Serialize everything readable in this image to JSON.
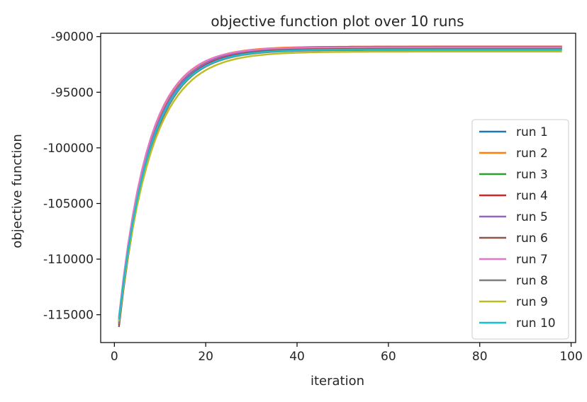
{
  "chart_data": {
    "type": "line",
    "title": "objective function plot over 10 runs",
    "xlabel": "iteration",
    "ylabel": "objective function",
    "xlim": [
      -3,
      101
    ],
    "ylim": [
      -117500,
      -89700
    ],
    "xticks": [
      0,
      20,
      40,
      60,
      80,
      100
    ],
    "yticks": [
      -90000,
      -95000,
      -100000,
      -105000,
      -110000,
      -115000
    ],
    "xtick_labels": [
      "0",
      "20",
      "40",
      "60",
      "80",
      "100"
    ],
    "ytick_labels": [
      "-90000",
      "-95000",
      "-100000",
      "-105000",
      "-110000",
      "-115000"
    ],
    "grid": false,
    "legend_position": "lower right",
    "x_range": [
      1,
      98
    ],
    "series": [
      {
        "name": "run 1",
        "color": "#1f77b4",
        "start": -115700,
        "plateau": -91000,
        "tau": 6.6
      },
      {
        "name": "run 2",
        "color": "#ff7f0e",
        "start": -115300,
        "plateau": -90900,
        "tau": 6.5
      },
      {
        "name": "run 3",
        "color": "#2ca02c",
        "start": -115600,
        "plateau": -91100,
        "tau": 6.7
      },
      {
        "name": "run 4",
        "color": "#d62728",
        "start": -115900,
        "plateau": -90900,
        "tau": 7.0
      },
      {
        "name": "run 5",
        "color": "#9467bd",
        "start": -115500,
        "plateau": -90950,
        "tau": 6.7
      },
      {
        "name": "run 6",
        "color": "#8c564b",
        "start": -116100,
        "plateau": -91050,
        "tau": 6.9
      },
      {
        "name": "run 7",
        "color": "#e377c2",
        "start": -115200,
        "plateau": -90950,
        "tau": 6.4
      },
      {
        "name": "run 8",
        "color": "#7f7f7f",
        "start": -115800,
        "plateau": -91200,
        "tau": 6.8
      },
      {
        "name": "run 9",
        "color": "#bcbd22",
        "start": -115600,
        "plateau": -91350,
        "tau": 7.1
      },
      {
        "name": "run 10",
        "color": "#17becf",
        "start": -115400,
        "plateau": -91150,
        "tau": 6.8
      }
    ]
  }
}
